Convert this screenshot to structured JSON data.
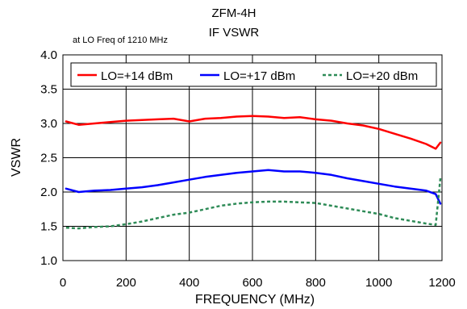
{
  "chart_data": {
    "type": "line",
    "title": "ZFM-4H",
    "subtitle": "IF VSWR",
    "note": "at LO Freq of 1210 MHz",
    "xlabel": "FREQUENCY (MHz)",
    "ylabel": "VSWR",
    "xlim": [
      0,
      1200
    ],
    "ylim": [
      1.0,
      4.0
    ],
    "xticks": [
      0,
      200,
      400,
      600,
      800,
      1000,
      1200
    ],
    "yticks": [
      "1.0",
      "1.5",
      "2.0",
      "2.5",
      "3.0",
      "3.5",
      "4.0"
    ],
    "grid": true,
    "legend_position": "top",
    "x": [
      10,
      50,
      100,
      150,
      200,
      250,
      300,
      350,
      400,
      450,
      500,
      550,
      600,
      650,
      700,
      750,
      800,
      850,
      900,
      950,
      1000,
      1050,
      1100,
      1150,
      1180,
      1195
    ],
    "series": [
      {
        "name": "LO=+14 dBm",
        "color": "#ff0000",
        "dash": "solid",
        "values": [
          3.03,
          2.98,
          3.0,
          3.02,
          3.04,
          3.05,
          3.06,
          3.07,
          3.03,
          3.07,
          3.08,
          3.1,
          3.11,
          3.1,
          3.08,
          3.09,
          3.06,
          3.04,
          3.0,
          2.97,
          2.92,
          2.85,
          2.78,
          2.7,
          2.63,
          2.72
        ]
      },
      {
        "name": "LO=+17 dBm",
        "color": "#0000ff",
        "dash": "solid",
        "values": [
          2.05,
          2.0,
          2.02,
          2.03,
          2.05,
          2.07,
          2.1,
          2.14,
          2.18,
          2.22,
          2.25,
          2.28,
          2.3,
          2.32,
          2.3,
          2.3,
          2.28,
          2.25,
          2.2,
          2.16,
          2.12,
          2.08,
          2.05,
          2.02,
          1.97,
          1.83
        ]
      },
      {
        "name": "LO=+20 dBm",
        "color": "#2e8b57",
        "dash": "dashed",
        "values": [
          1.48,
          1.47,
          1.49,
          1.5,
          1.53,
          1.57,
          1.62,
          1.67,
          1.7,
          1.75,
          1.8,
          1.83,
          1.85,
          1.86,
          1.86,
          1.85,
          1.84,
          1.8,
          1.76,
          1.72,
          1.68,
          1.62,
          1.58,
          1.54,
          1.52,
          2.2
        ]
      }
    ]
  }
}
